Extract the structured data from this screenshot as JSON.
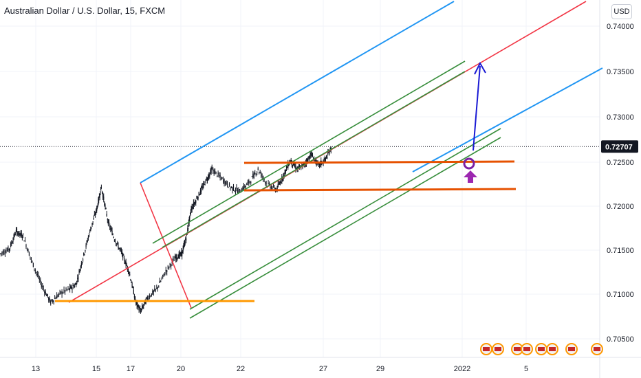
{
  "header": {
    "title": "Australian Dollar / U.S. Dollar, 15, FXCM",
    "currency": "USD"
  },
  "chart_data": {
    "type": "candlestick",
    "symbol": "AUDUSD",
    "y_ticks": [
      "0.74000",
      "0.73500",
      "0.73000",
      "0.72500",
      "0.72000",
      "0.71500",
      "0.71000",
      "0.70500"
    ],
    "x_ticks": [
      "13",
      "15",
      "17",
      "20",
      "22",
      "27",
      "29",
      "2022",
      "5"
    ],
    "ylim": [
      0.7033,
      0.7436
    ],
    "last_price": "0.72707",
    "price_path": [
      [
        0.0,
        0.715
      ],
      [
        0.02,
        0.7155
      ],
      [
        0.035,
        0.7175
      ],
      [
        0.05,
        0.717
      ],
      [
        0.07,
        0.714
      ],
      [
        0.09,
        0.7115
      ],
      [
        0.11,
        0.7095
      ],
      [
        0.13,
        0.7105
      ],
      [
        0.15,
        0.711
      ],
      [
        0.165,
        0.7115
      ],
      [
        0.18,
        0.7145
      ],
      [
        0.195,
        0.7175
      ],
      [
        0.21,
        0.72
      ],
      [
        0.22,
        0.7225
      ],
      [
        0.235,
        0.7185
      ],
      [
        0.25,
        0.7165
      ],
      [
        0.265,
        0.715
      ],
      [
        0.28,
        0.713
      ],
      [
        0.295,
        0.7095
      ],
      [
        0.305,
        0.7085
      ],
      [
        0.32,
        0.71
      ],
      [
        0.34,
        0.711
      ],
      [
        0.36,
        0.713
      ],
      [
        0.38,
        0.7145
      ],
      [
        0.395,
        0.715
      ],
      [
        0.405,
        0.717
      ],
      [
        0.415,
        0.72
      ],
      [
        0.43,
        0.7215
      ],
      [
        0.445,
        0.723
      ],
      [
        0.46,
        0.7245
      ],
      [
        0.48,
        0.7235
      ],
      [
        0.5,
        0.7225
      ],
      [
        0.52,
        0.722
      ],
      [
        0.54,
        0.723
      ],
      [
        0.56,
        0.7245
      ],
      [
        0.58,
        0.7228
      ],
      [
        0.6,
        0.7222
      ],
      [
        0.615,
        0.7238
      ],
      [
        0.63,
        0.7255
      ],
      [
        0.645,
        0.7245
      ],
      [
        0.66,
        0.725
      ],
      [
        0.675,
        0.7262
      ],
      [
        0.69,
        0.725
      ],
      [
        0.705,
        0.7255
      ],
      [
        0.72,
        0.727
      ]
    ],
    "drawings": {
      "fib_channel_upper": "#2196f3",
      "fib_channel_mid": "#f23645",
      "green_channel": "#388e3c",
      "orange_support": "#ff9800",
      "orange_range_lines": "#e65100",
      "projection_arrow": "#1a1ad4",
      "circle_marker": "#7b1fa2",
      "up_arrow_marker": "#9c27b0"
    },
    "grid": true
  }
}
